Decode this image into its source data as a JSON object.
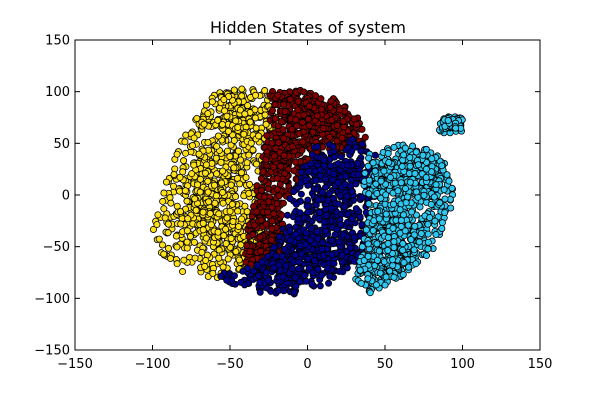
{
  "chart_data": {
    "type": "scatter",
    "title": "Hidden States of system",
    "xlabel": "",
    "ylabel": "",
    "xlim": [
      -150,
      150
    ],
    "ylim": [
      -150,
      150
    ],
    "xticks": [
      -150,
      -100,
      -50,
      0,
      50,
      100,
      150
    ],
    "yticks": [
      -150,
      -100,
      -50,
      0,
      50,
      100,
      150
    ],
    "xtick_labels": [
      "−150",
      "−100",
      "−50",
      "0",
      "50",
      "100",
      "150"
    ],
    "ytick_labels": [
      "−150",
      "−100",
      "−50",
      "0",
      "50",
      "100",
      "150"
    ],
    "grid": false,
    "legend": "none",
    "marker_edge_color": "#000000",
    "series": [
      {
        "color": "#ffe119",
        "region_outline": [
          [
            -95,
            -10
          ],
          [
            -90,
            20
          ],
          [
            -80,
            60
          ],
          [
            -70,
            80
          ],
          [
            -60,
            100
          ],
          [
            -40,
            103
          ],
          [
            -20,
            100
          ],
          [
            -15,
            80
          ],
          [
            -20,
            50
          ],
          [
            -25,
            20
          ],
          [
            -25,
            -20
          ],
          [
            -30,
            -50
          ],
          [
            -40,
            -70
          ],
          [
            -60,
            -82
          ],
          [
            -80,
            -75
          ],
          [
            -95,
            -55
          ],
          [
            -100,
            -35
          ]
        ],
        "cluster_centers": [
          [
            -60,
            20
          ],
          [
            -45,
            60
          ],
          [
            -70,
            -20
          ],
          [
            -50,
            -50
          ],
          [
            -40,
            80
          ]
        ],
        "spread": [
          14,
          14
        ]
      },
      {
        "color": "#7f0000",
        "region_outline": [
          [
            -25,
            100
          ],
          [
            -5,
            102
          ],
          [
            15,
            95
          ],
          [
            30,
            85
          ],
          [
            35,
            65
          ],
          [
            40,
            50
          ],
          [
            25,
            40
          ],
          [
            10,
            30
          ],
          [
            -5,
            10
          ],
          [
            -15,
            -10
          ],
          [
            -15,
            -40
          ],
          [
            -20,
            -70
          ],
          [
            -40,
            -70
          ],
          [
            -40,
            -40
          ],
          [
            -35,
            -10
          ],
          [
            -30,
            30
          ],
          [
            -25,
            70
          ]
        ],
        "cluster_centers": [
          [
            0,
            80
          ],
          [
            -20,
            40
          ],
          [
            -30,
            -20
          ],
          [
            20,
            60
          ],
          [
            -25,
            -60
          ]
        ],
        "spread": [
          10,
          12
        ]
      },
      {
        "color": "#00008b",
        "region_outline": [
          [
            5,
            50
          ],
          [
            30,
            55
          ],
          [
            45,
            45
          ],
          [
            45,
            10
          ],
          [
            40,
            -30
          ],
          [
            35,
            -60
          ],
          [
            20,
            -80
          ],
          [
            0,
            -97
          ],
          [
            -30,
            -95
          ],
          [
            -50,
            -85
          ],
          [
            -60,
            -78
          ],
          [
            -30,
            -65
          ],
          [
            -15,
            -30
          ],
          [
            -10,
            10
          ]
        ],
        "cluster_centers": [
          [
            20,
            20
          ],
          [
            15,
            -20
          ],
          [
            0,
            -50
          ],
          [
            -20,
            -80
          ],
          [
            30,
            -60
          ]
        ],
        "spread": [
          12,
          12
        ]
      },
      {
        "color": "#2ec7f0",
        "region_outline": [
          [
            40,
            40
          ],
          [
            60,
            50
          ],
          [
            80,
            45
          ],
          [
            90,
            30
          ],
          [
            95,
            0
          ],
          [
            90,
            -30
          ],
          [
            80,
            -55
          ],
          [
            60,
            -80
          ],
          [
            40,
            -95
          ],
          [
            30,
            -80
          ],
          [
            35,
            -50
          ],
          [
            40,
            -20
          ],
          [
            35,
            10
          ]
        ],
        "cluster_centers": [
          [
            60,
            10
          ],
          [
            55,
            -30
          ],
          [
            75,
            20
          ],
          [
            50,
            -65
          ],
          [
            95,
            68
          ]
        ],
        "spread": [
          12,
          12
        ]
      }
    ]
  }
}
